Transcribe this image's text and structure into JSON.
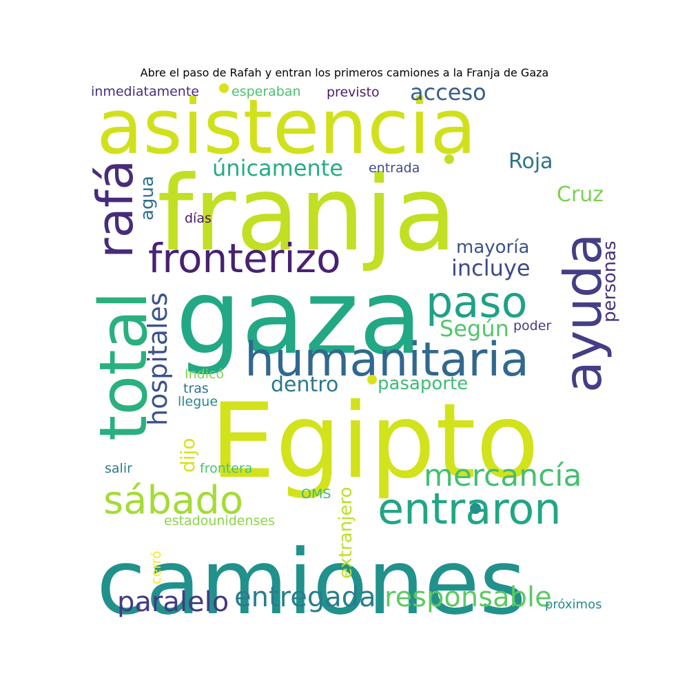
{
  "title": "Abre el paso de Rafah y entran los primeros camiones a la Franja de Gaza",
  "words": [
    {
      "text": "asistencia",
      "color": "#d0e11c"
    },
    {
      "text": "franja",
      "color": "#c2df23"
    },
    {
      "text": "gaza",
      "color": "#22a884"
    },
    {
      "text": "Egipto",
      "color": "#d2e21b"
    },
    {
      "text": "camiones",
      "color": "#21918c"
    },
    {
      "text": "total",
      "color": "#2ab07f"
    },
    {
      "text": "rafá",
      "color": "#472c7a"
    },
    {
      "text": "ayuda",
      "color": "#433e85"
    },
    {
      "text": "humanitaria",
      "color": "#31688e"
    },
    {
      "text": "fronterizo",
      "color": "#482173"
    },
    {
      "text": "paso",
      "color": "#1fa187"
    },
    {
      "text": "entraron",
      "color": "#21a685"
    },
    {
      "text": "sábado",
      "color": "#a5db36"
    },
    {
      "text": "mercancía",
      "color": "#44bf70"
    },
    {
      "text": "responsable",
      "color": "#5ec962"
    },
    {
      "text": "entregada",
      "color": "#287d8e"
    },
    {
      "text": "paralelo",
      "color": "#443983"
    },
    {
      "text": "hospitales",
      "color": "#3b528b"
    },
    {
      "text": "acceso",
      "color": "#355f8d"
    },
    {
      "text": "únicamente",
      "color": "#25ac82"
    },
    {
      "text": "Roja",
      "color": "#2c738e"
    },
    {
      "text": "Cruz",
      "color": "#7ad151"
    },
    {
      "text": "incluye",
      "color": "#3e4989"
    },
    {
      "text": "Según",
      "color": "#52c569"
    },
    {
      "text": "dentro",
      "color": "#2a788e"
    },
    {
      "text": "pasaporte",
      "color": "#3dbc74"
    },
    {
      "text": "mayoría",
      "color": "#3b528b"
    },
    {
      "text": "personas",
      "color": "#46327e"
    },
    {
      "text": "agua",
      "color": "#2d708e"
    },
    {
      "text": "dijo",
      "color": "#d8e219"
    },
    {
      "text": "extranjero",
      "color": "#bddf26"
    },
    {
      "text": "inmediatamente",
      "color": "#472d7b"
    },
    {
      "text": "esperaban",
      "color": "#4ac16d"
    },
    {
      "text": "previsto",
      "color": "#481b6d"
    },
    {
      "text": "entrada",
      "color": "#3e4a89"
    },
    {
      "text": "días",
      "color": "#481467"
    },
    {
      "text": "poder",
      "color": "#433d84"
    },
    {
      "text": "Indicó",
      "color": "#7fd34e"
    },
    {
      "text": "tras",
      "color": "#2d718e"
    },
    {
      "text": "llegue",
      "color": "#24878e"
    },
    {
      "text": "salir",
      "color": "#297b8e"
    },
    {
      "text": "frontera",
      "color": "#4ac16d"
    },
    {
      "text": "OMS",
      "color": "#3cbb75"
    },
    {
      "text": "estadounidenses",
      "color": "#89d548"
    },
    {
      "text": "cerró",
      "color": "#fde725"
    },
    {
      "text": "próximos",
      "color": "#23898e"
    }
  ]
}
